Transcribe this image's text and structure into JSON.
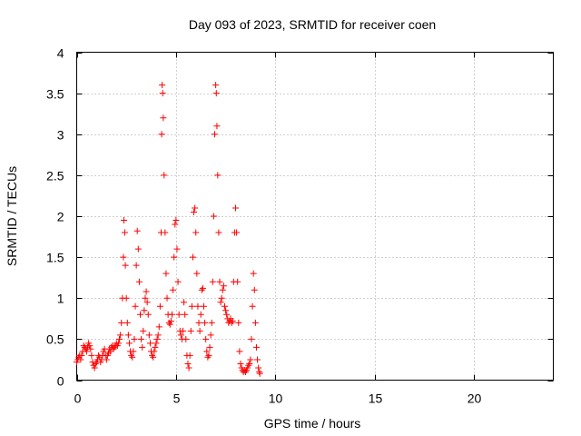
{
  "chart_data": {
    "type": "scatter",
    "title": "Day 093 of 2023, SRMTID for receiver coen",
    "xlabel": "GPS time / hours",
    "ylabel": "SRMTID / TECUs",
    "xlim": [
      0,
      24
    ],
    "ylim": [
      0,
      4
    ],
    "xticks": [
      0,
      5,
      10,
      15,
      20
    ],
    "yticks": [
      0,
      0.5,
      1,
      1.5,
      2,
      2.5,
      3,
      3.5,
      4
    ],
    "ytick_labels": [
      "0",
      "0.5",
      "1",
      "1.5",
      "2",
      "2.5",
      "3",
      "3.5",
      "4"
    ],
    "grid": true,
    "marker": "+",
    "color": "#ff0000",
    "series": [
      {
        "name": "SRMTID",
        "points": [
          [
            0.0,
            0.22
          ],
          [
            0.05,
            0.25
          ],
          [
            0.1,
            0.28
          ],
          [
            0.15,
            0.3
          ],
          [
            0.2,
            0.25
          ],
          [
            0.25,
            0.3
          ],
          [
            0.3,
            0.35
          ],
          [
            0.35,
            0.42
          ],
          [
            0.4,
            0.4
          ],
          [
            0.45,
            0.38
          ],
          [
            0.5,
            0.35
          ],
          [
            0.55,
            0.4
          ],
          [
            0.6,
            0.45
          ],
          [
            0.65,
            0.42
          ],
          [
            0.7,
            0.38
          ],
          [
            0.75,
            0.3
          ],
          [
            0.8,
            0.22
          ],
          [
            0.85,
            0.18
          ],
          [
            0.9,
            0.15
          ],
          [
            0.95,
            0.2
          ],
          [
            1.0,
            0.22
          ],
          [
            1.05,
            0.25
          ],
          [
            1.1,
            0.3
          ],
          [
            1.15,
            0.28
          ],
          [
            1.2,
            0.22
          ],
          [
            1.25,
            0.25
          ],
          [
            1.3,
            0.3
          ],
          [
            1.35,
            0.35
          ],
          [
            1.4,
            0.38
          ],
          [
            1.45,
            0.3
          ],
          [
            1.5,
            0.25
          ],
          [
            1.55,
            0.3
          ],
          [
            1.6,
            0.33
          ],
          [
            1.65,
            0.38
          ],
          [
            1.7,
            0.35
          ],
          [
            1.75,
            0.4
          ],
          [
            1.8,
            0.42
          ],
          [
            1.85,
            0.38
          ],
          [
            1.9,
            0.4
          ],
          [
            1.95,
            0.42
          ],
          [
            2.0,
            0.45
          ],
          [
            2.05,
            0.42
          ],
          [
            2.1,
            0.45
          ],
          [
            2.15,
            0.5
          ],
          [
            2.2,
            0.55
          ],
          [
            2.25,
            0.7
          ],
          [
            2.3,
            1.0
          ],
          [
            2.35,
            1.5
          ],
          [
            2.38,
            1.95
          ],
          [
            2.42,
            1.8
          ],
          [
            2.45,
            1.4
          ],
          [
            2.5,
            1.0
          ],
          [
            2.55,
            0.7
          ],
          [
            2.6,
            0.55
          ],
          [
            2.65,
            0.45
          ],
          [
            2.7,
            0.35
          ],
          [
            2.75,
            0.3
          ],
          [
            2.8,
            0.28
          ],
          [
            2.85,
            0.35
          ],
          [
            2.9,
            0.5
          ],
          [
            2.95,
            0.9
          ],
          [
            3.0,
            1.4
          ],
          [
            3.05,
            1.82
          ],
          [
            3.1,
            1.6
          ],
          [
            3.15,
            1.2
          ],
          [
            3.2,
            0.8
          ],
          [
            3.25,
            0.5
          ],
          [
            3.3,
            0.4
          ],
          [
            3.35,
            0.6
          ],
          [
            3.4,
            0.85
          ],
          [
            3.45,
            1.0
          ],
          [
            3.5,
            1.08
          ],
          [
            3.55,
            0.95
          ],
          [
            3.6,
            0.8
          ],
          [
            3.65,
            0.55
          ],
          [
            3.7,
            0.45
          ],
          [
            3.75,
            0.35
          ],
          [
            3.8,
            0.3
          ],
          [
            3.85,
            0.28
          ],
          [
            3.9,
            0.35
          ],
          [
            3.95,
            0.4
          ],
          [
            4.0,
            0.45
          ],
          [
            4.05,
            0.5
          ],
          [
            4.1,
            0.55
          ],
          [
            4.15,
            0.65
          ],
          [
            4.2,
            0.9
          ],
          [
            4.25,
            1.8
          ],
          [
            4.28,
            3.0
          ],
          [
            4.3,
            3.6
          ],
          [
            4.33,
            3.5
          ],
          [
            4.36,
            3.2
          ],
          [
            4.4,
            2.5
          ],
          [
            4.45,
            1.8
          ],
          [
            4.5,
            1.3
          ],
          [
            4.55,
            1.0
          ],
          [
            4.6,
            0.8
          ],
          [
            4.65,
            0.7
          ],
          [
            4.7,
            0.68
          ],
          [
            4.75,
            0.72
          ],
          [
            4.8,
            0.8
          ],
          [
            4.85,
            1.1
          ],
          [
            4.9,
            1.5
          ],
          [
            4.95,
            1.9
          ],
          [
            5.0,
            1.95
          ],
          [
            5.05,
            1.6
          ],
          [
            5.1,
            1.2
          ],
          [
            5.15,
            0.8
          ],
          [
            5.2,
            0.6
          ],
          [
            5.25,
            0.55
          ],
          [
            5.3,
            0.5
          ],
          [
            5.35,
            0.6
          ],
          [
            5.4,
            0.95
          ],
          [
            5.45,
            0.8
          ],
          [
            5.5,
            0.5
          ],
          [
            5.55,
            0.3
          ],
          [
            5.6,
            0.2
          ],
          [
            5.65,
            0.15
          ],
          [
            5.7,
            0.3
          ],
          [
            5.75,
            0.6
          ],
          [
            5.8,
            0.9
          ],
          [
            5.85,
            1.5
          ],
          [
            5.9,
            2.05
          ],
          [
            5.95,
            2.1
          ],
          [
            6.0,
            1.8
          ],
          [
            6.05,
            1.3
          ],
          [
            6.1,
            0.9
          ],
          [
            6.15,
            0.7
          ],
          [
            6.2,
            0.6
          ],
          [
            6.25,
            0.8
          ],
          [
            6.3,
            1.1
          ],
          [
            6.35,
            1.12
          ],
          [
            6.4,
            0.9
          ],
          [
            6.45,
            0.7
          ],
          [
            6.5,
            0.5
          ],
          [
            6.55,
            0.35
          ],
          [
            6.6,
            0.28
          ],
          [
            6.65,
            0.3
          ],
          [
            6.7,
            0.4
          ],
          [
            6.75,
            0.55
          ],
          [
            6.8,
            0.7
          ],
          [
            6.85,
            1.2
          ],
          [
            6.9,
            2.0
          ],
          [
            6.95,
            3.0
          ],
          [
            7.0,
            3.6
          ],
          [
            7.03,
            3.5
          ],
          [
            7.06,
            3.1
          ],
          [
            7.1,
            2.5
          ],
          [
            7.15,
            1.8
          ],
          [
            7.2,
            1.2
          ],
          [
            7.25,
            0.95
          ],
          [
            7.3,
            1.0
          ],
          [
            7.35,
            1.1
          ],
          [
            7.4,
            1.15
          ],
          [
            7.45,
            0.9
          ],
          [
            7.5,
            0.85
          ],
          [
            7.55,
            0.8
          ],
          [
            7.6,
            0.75
          ],
          [
            7.65,
            0.7
          ],
          [
            7.7,
            0.72
          ],
          [
            7.75,
            0.75
          ],
          [
            7.8,
            0.7
          ],
          [
            7.85,
            0.72
          ],
          [
            7.9,
            1.2
          ],
          [
            7.95,
            1.8
          ],
          [
            8.0,
            2.1
          ],
          [
            8.05,
            1.8
          ],
          [
            8.1,
            1.2
          ],
          [
            8.15,
            0.7
          ],
          [
            8.2,
            0.35
          ],
          [
            8.25,
            0.2
          ],
          [
            8.3,
            0.15
          ],
          [
            8.35,
            0.12
          ],
          [
            8.4,
            0.1
          ],
          [
            8.45,
            0.12
          ],
          [
            8.5,
            0.1
          ],
          [
            8.55,
            0.12
          ],
          [
            8.6,
            0.15
          ],
          [
            8.65,
            0.18
          ],
          [
            8.7,
            0.2
          ],
          [
            8.75,
            0.25
          ],
          [
            8.8,
            0.5
          ],
          [
            8.85,
            0.9
          ],
          [
            8.9,
            1.3
          ],
          [
            8.95,
            1.1
          ],
          [
            9.0,
            0.7
          ],
          [
            9.05,
            0.4
          ],
          [
            9.1,
            0.25
          ],
          [
            9.15,
            0.15
          ],
          [
            9.2,
            0.1
          ],
          [
            9.22,
            0.08
          ]
        ]
      }
    ]
  }
}
